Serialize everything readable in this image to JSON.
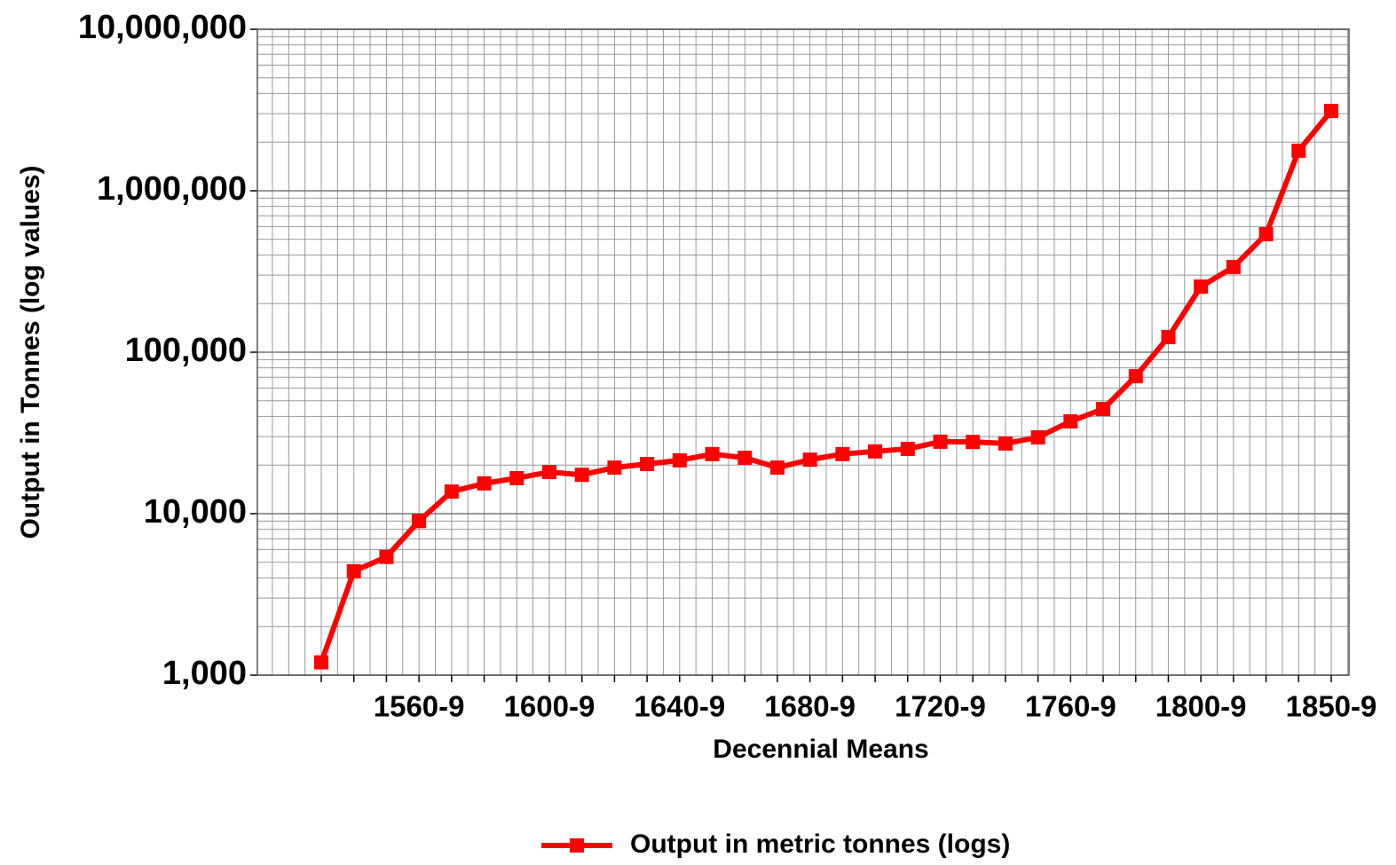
{
  "chart_data": {
    "type": "line",
    "x_label": "Decennial Means",
    "y_label": "Output in Tonnes (log values)",
    "categories": [
      null,
      null,
      null,
      "1560-9",
      null,
      null,
      null,
      "1600-9",
      null,
      null,
      null,
      "1640-9",
      null,
      null,
      null,
      "1680-9",
      null,
      null,
      null,
      "1720-9",
      null,
      null,
      null,
      "1760-9",
      null,
      null,
      null,
      "1800-9",
      null,
      null,
      null,
      "1850-9"
    ],
    "series": [
      {
        "name": "Output in metric tonnes (logs)",
        "color": "#ff0000",
        "values": [
          1200,
          4400,
          5400,
          9000,
          13700,
          15400,
          16600,
          18100,
          17400,
          19300,
          20300,
          21400,
          23400,
          22200,
          19300,
          21600,
          23400,
          24300,
          25200,
          27900,
          27800,
          27200,
          29700,
          37300,
          44500,
          71000,
          124000,
          255000,
          337000,
          538000,
          1770000,
          3120000
        ]
      }
    ],
    "ylim": [
      1000,
      10000000
    ],
    "yticks": [
      {
        "value": 1000,
        "label": "1,000"
      },
      {
        "value": 10000,
        "label": "10,000"
      },
      {
        "value": 100000,
        "label": "100,000"
      },
      {
        "value": 1000000,
        "label": "1,000,000"
      },
      {
        "value": 10000000,
        "label": "10,000,000"
      }
    ],
    "log_scale": true,
    "grid": true,
    "legend": "bottom"
  }
}
